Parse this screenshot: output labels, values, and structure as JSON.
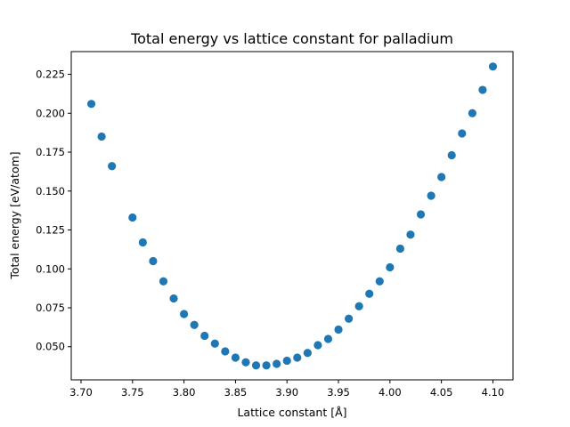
{
  "chart_data": {
    "type": "scatter",
    "title": "Total energy vs lattice constant for palladium",
    "xlabel": "Lattice constant [Å]",
    "ylabel": "Total energy [eV/atom]",
    "xlim": [
      3.6905,
      4.1195
    ],
    "ylim": [
      0.0287,
      0.2396
    ],
    "xticks": [
      "3.70",
      "3.75",
      "3.80",
      "3.85",
      "3.90",
      "3.95",
      "4.00",
      "4.05",
      "4.10"
    ],
    "yticks": [
      "0.050",
      "0.075",
      "0.100",
      "0.125",
      "0.150",
      "0.175",
      "0.200",
      "0.225"
    ],
    "marker_color": "#1f77b4",
    "grid": false,
    "series": [
      {
        "x": [
          3.71,
          3.72,
          3.73,
          3.75,
          3.76,
          3.77,
          3.78,
          3.79,
          3.8,
          3.81,
          3.82,
          3.83,
          3.84,
          3.85,
          3.86,
          3.87,
          3.88,
          3.89,
          3.9,
          3.91,
          3.92,
          3.93,
          3.94,
          3.95,
          3.96,
          3.97,
          3.98,
          3.99,
          4.0,
          4.01,
          4.02,
          4.03,
          4.04,
          4.05,
          4.06,
          4.07,
          4.08,
          4.09,
          4.1
        ],
        "y": [
          0.206,
          0.185,
          0.166,
          0.133,
          0.117,
          0.105,
          0.092,
          0.081,
          0.071,
          0.064,
          0.057,
          0.052,
          0.047,
          0.043,
          0.04,
          0.038,
          0.038,
          0.039,
          0.041,
          0.043,
          0.046,
          0.051,
          0.055,
          0.061,
          0.068,
          0.076,
          0.084,
          0.092,
          0.101,
          0.113,
          0.122,
          0.135,
          0.147,
          0.159,
          0.173,
          0.187,
          0.2,
          0.215,
          0.23
        ]
      }
    ]
  }
}
